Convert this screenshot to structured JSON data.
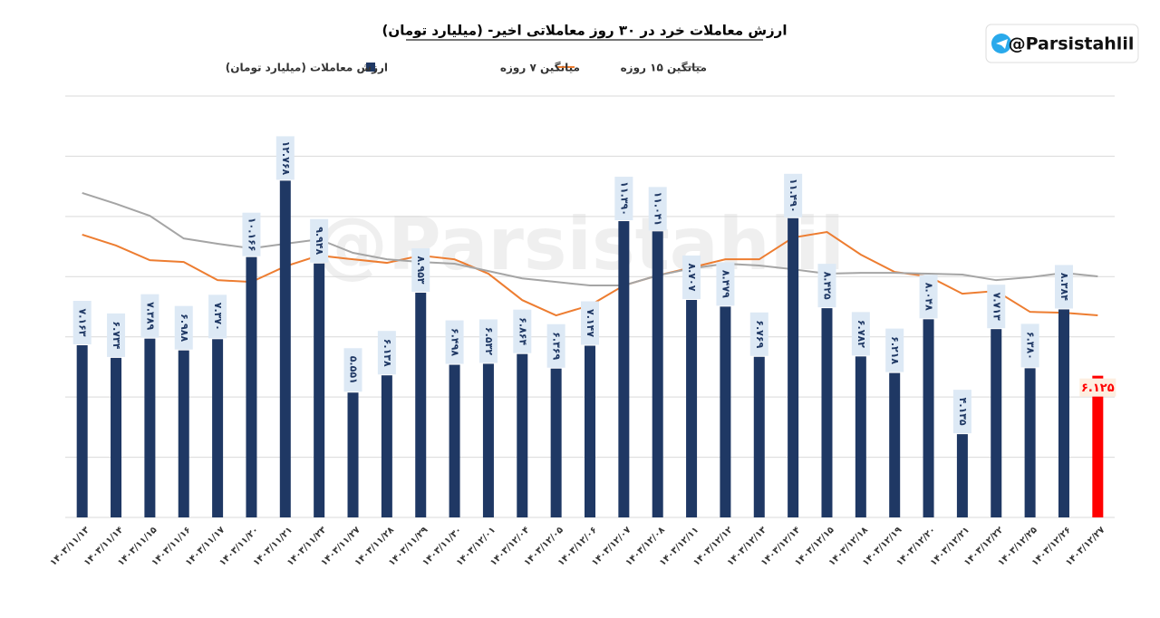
{
  "chart_data": {
    "type": "bar",
    "title": "ارزش معاملات خرد در ۳۰ روز معاملاتی اخیر- (میلیارد تومان)",
    "watermark": "@Parsistahlil",
    "categories": [
      "۱۴۰۳/۱۱/۱۳",
      "۱۴۰۳/۱۱/۱۴",
      "۱۴۰۳/۱۱/۱۵",
      "۱۴۰۳/۱۱/۱۶",
      "۱۴۰۳/۱۱/۱۷",
      "۱۴۰۳/۱۱/۲۰",
      "۱۴۰۳/۱۱/۲۱",
      "۱۴۰۳/۱۱/۲۳",
      "۱۴۰۳/۱۱/۲۷",
      "۱۴۰۳/۱۱/۲۸",
      "۱۴۰۳/۱۱/۲۹",
      "۱۴۰۳/۱۱/۳۰",
      "۱۴۰۳/۱۲/۰۱",
      "۱۴۰۳/۱۲/۰۴",
      "۱۴۰۳/۱۲/۰۵",
      "۱۴۰۳/۱۲/۰۶",
      "۱۴۰۳/۱۲/۰۷",
      "۱۴۰۳/۱۲/۰۸",
      "۱۴۰۳/۱۲/۱۱",
      "۱۴۰۳/۱۲/۱۲",
      "۱۴۰۳/۱۲/۱۳",
      "۱۴۰۳/۱۲/۱۴",
      "۱۴۰۳/۱۲/۱۵",
      "۱۴۰۳/۱۲/۱۸",
      "۱۴۰۳/۱۲/۱۹",
      "۱۴۰۳/۱۲/۲۰",
      "۱۴۰۳/۱۲/۲۱",
      "۱۴۰۳/۱۲/۲۲",
      "۱۴۰۳/۱۲/۲۵",
      "۱۴۰۳/۱۲/۲۶",
      "۱۴۰۳/۱۲/۲۷"
    ],
    "series": [
      {
        "name": "ارزش معاملات (میلیارد تومان)",
        "kind": "bar",
        "color": "#1f3864",
        "bar_colors": [
          "#1f3864",
          "#1f3864",
          "#1f3864",
          "#1f3864",
          "#1f3864",
          "#1f3864",
          "#1f3864",
          "#1f3864",
          "#1f3864",
          "#1f3864",
          "#1f3864",
          "#1f3864",
          "#1f3864",
          "#1f3864",
          "#1f3864",
          "#1f3864",
          "#1f3864",
          "#1f3864",
          "#1f3864",
          "#1f3864",
          "#1f3864",
          "#1f3864",
          "#1f3864",
          "#1f3864",
          "#1f3864",
          "#1f3864",
          "#1f3864",
          "#1f3864",
          "#1f3864",
          "#1f3864",
          "#ff0000"
        ],
        "values": [
          7.163,
          6.734,
          7.389,
          6.988,
          7.37,
          10.166,
          12.768,
          9.948,
          5.551,
          6.138,
          8.953,
          6.498,
          6.532,
          6.864,
          6.369,
          7.147,
          11.39,
          11.041,
          8.707,
          8.479,
          6.769,
          11.49,
          8.425,
          6.782,
          6.218,
          8.048,
          4.135,
          7.713,
          6.38,
          8.384,
          6.125
        ],
        "value_labels": [
          "۷.۱۶۳",
          "۶.۷۳۴",
          "۷.۳۸۹",
          "۶.۹۸۸",
          "۷.۳۷۰",
          "۱۰.۱۶۶",
          "۱۲.۷۶۸",
          "۹.۹۴۸",
          "۵.۵۵۱",
          "۶.۱۳۸",
          "۸.۹۵۳",
          "۶.۴۹۸",
          "۶.۵۳۲",
          "۶.۸۶۴",
          "۶.۳۶۹",
          "۷.۱۴۷",
          "۱۱.۳۹۰",
          "۱۱.۰۴۱",
          "۸.۷۰۷",
          "۸.۴۷۹",
          "۶.۷۶۹",
          "۱۱.۴۹۰",
          "۸.۴۲۵",
          "۶.۷۸۲",
          "۶.۲۱۸",
          "۸.۰۴۸",
          "۴.۱۳۵",
          "۷.۷۱۳",
          "۶.۳۸۰",
          "۸.۳۸۴",
          "۶.۱۲۵"
        ]
      },
      {
        "name": "میانگین ۷ روزه",
        "kind": "line",
        "color": "#ed7d31",
        "values": [
          10.93,
          10.56,
          10.06,
          10.0,
          9.38,
          9.32,
          9.85,
          10.22,
          10.09,
          9.97,
          10.22,
          10.09,
          9.6,
          8.7,
          8.18,
          8.52,
          9.2,
          9.54,
          9.81,
          10.09,
          10.09,
          10.83,
          11.02,
          10.25,
          9.66,
          9.51,
          8.92,
          9.01,
          8.3,
          8.27,
          8.18
        ]
      },
      {
        "name": "میانگین ۱۵ روزه",
        "kind": "line",
        "color": "#a5a5a5",
        "values": [
          12.35,
          11.98,
          11.57,
          10.8,
          10.62,
          10.46,
          10.62,
          10.77,
          10.31,
          10.09,
          10.0,
          9.94,
          9.69,
          9.44,
          9.32,
          9.2,
          9.2,
          9.54,
          9.78,
          9.94,
          9.88,
          9.75,
          9.6,
          9.63,
          9.63,
          9.6,
          9.57,
          9.38,
          9.48,
          9.63,
          9.51
        ]
      }
    ],
    "ylim": [
      1.3,
      15.65
    ],
    "yticks": [
      1.3,
      3.35,
      5.4,
      7.45,
      9.5,
      11.55,
      13.6,
      15.65
    ],
    "grid": true
  }
}
